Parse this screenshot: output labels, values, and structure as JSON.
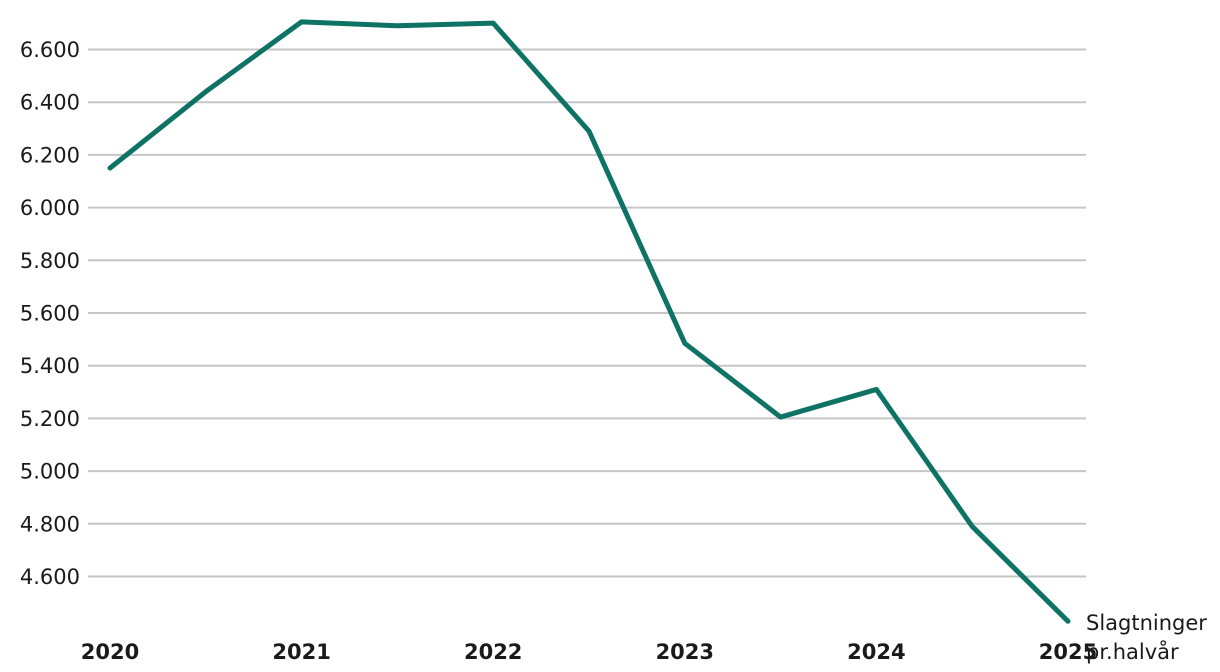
{
  "chart_data": {
    "type": "line",
    "title": "",
    "xlabel": "",
    "ylabel": "",
    "grid": true,
    "legend_position": "end-of-line-annotation",
    "annotation_lines": [
      "Slagtninger",
      "pr.halvår"
    ],
    "x_tick_labels": [
      "2020",
      "2021",
      "2022",
      "2023",
      "2024",
      "2025"
    ],
    "y_ticks": [
      6600,
      6400,
      6200,
      6000,
      5800,
      5600,
      5400,
      5200,
      5000,
      4800,
      4600
    ],
    "y_tick_labels": [
      "6.600",
      "6.400",
      "6.200",
      "6.000",
      "5.800",
      "5.600",
      "5.400",
      "5.200",
      "5.000",
      "4.800",
      "4.600"
    ],
    "ylim": [
      4395,
      6790
    ],
    "series": [
      {
        "name": "Slagtninger pr.halvår",
        "periods": [
          "2020 H1",
          "2020 H2",
          "2021 H1",
          "2021 H2",
          "2022 H1",
          "2022 H2",
          "2023 H1",
          "2023 H2",
          "2024 H1",
          "2024 H2",
          "2025 H1"
        ],
        "values": [
          6150,
          6440,
          6705,
          6690,
          6700,
          6290,
          5485,
          5205,
          5310,
          4790,
          4430
        ]
      }
    ],
    "colors": {
      "line": "#0E7265",
      "grid": "#C6C6C6",
      "axis_text": "#1A1A1A"
    }
  }
}
